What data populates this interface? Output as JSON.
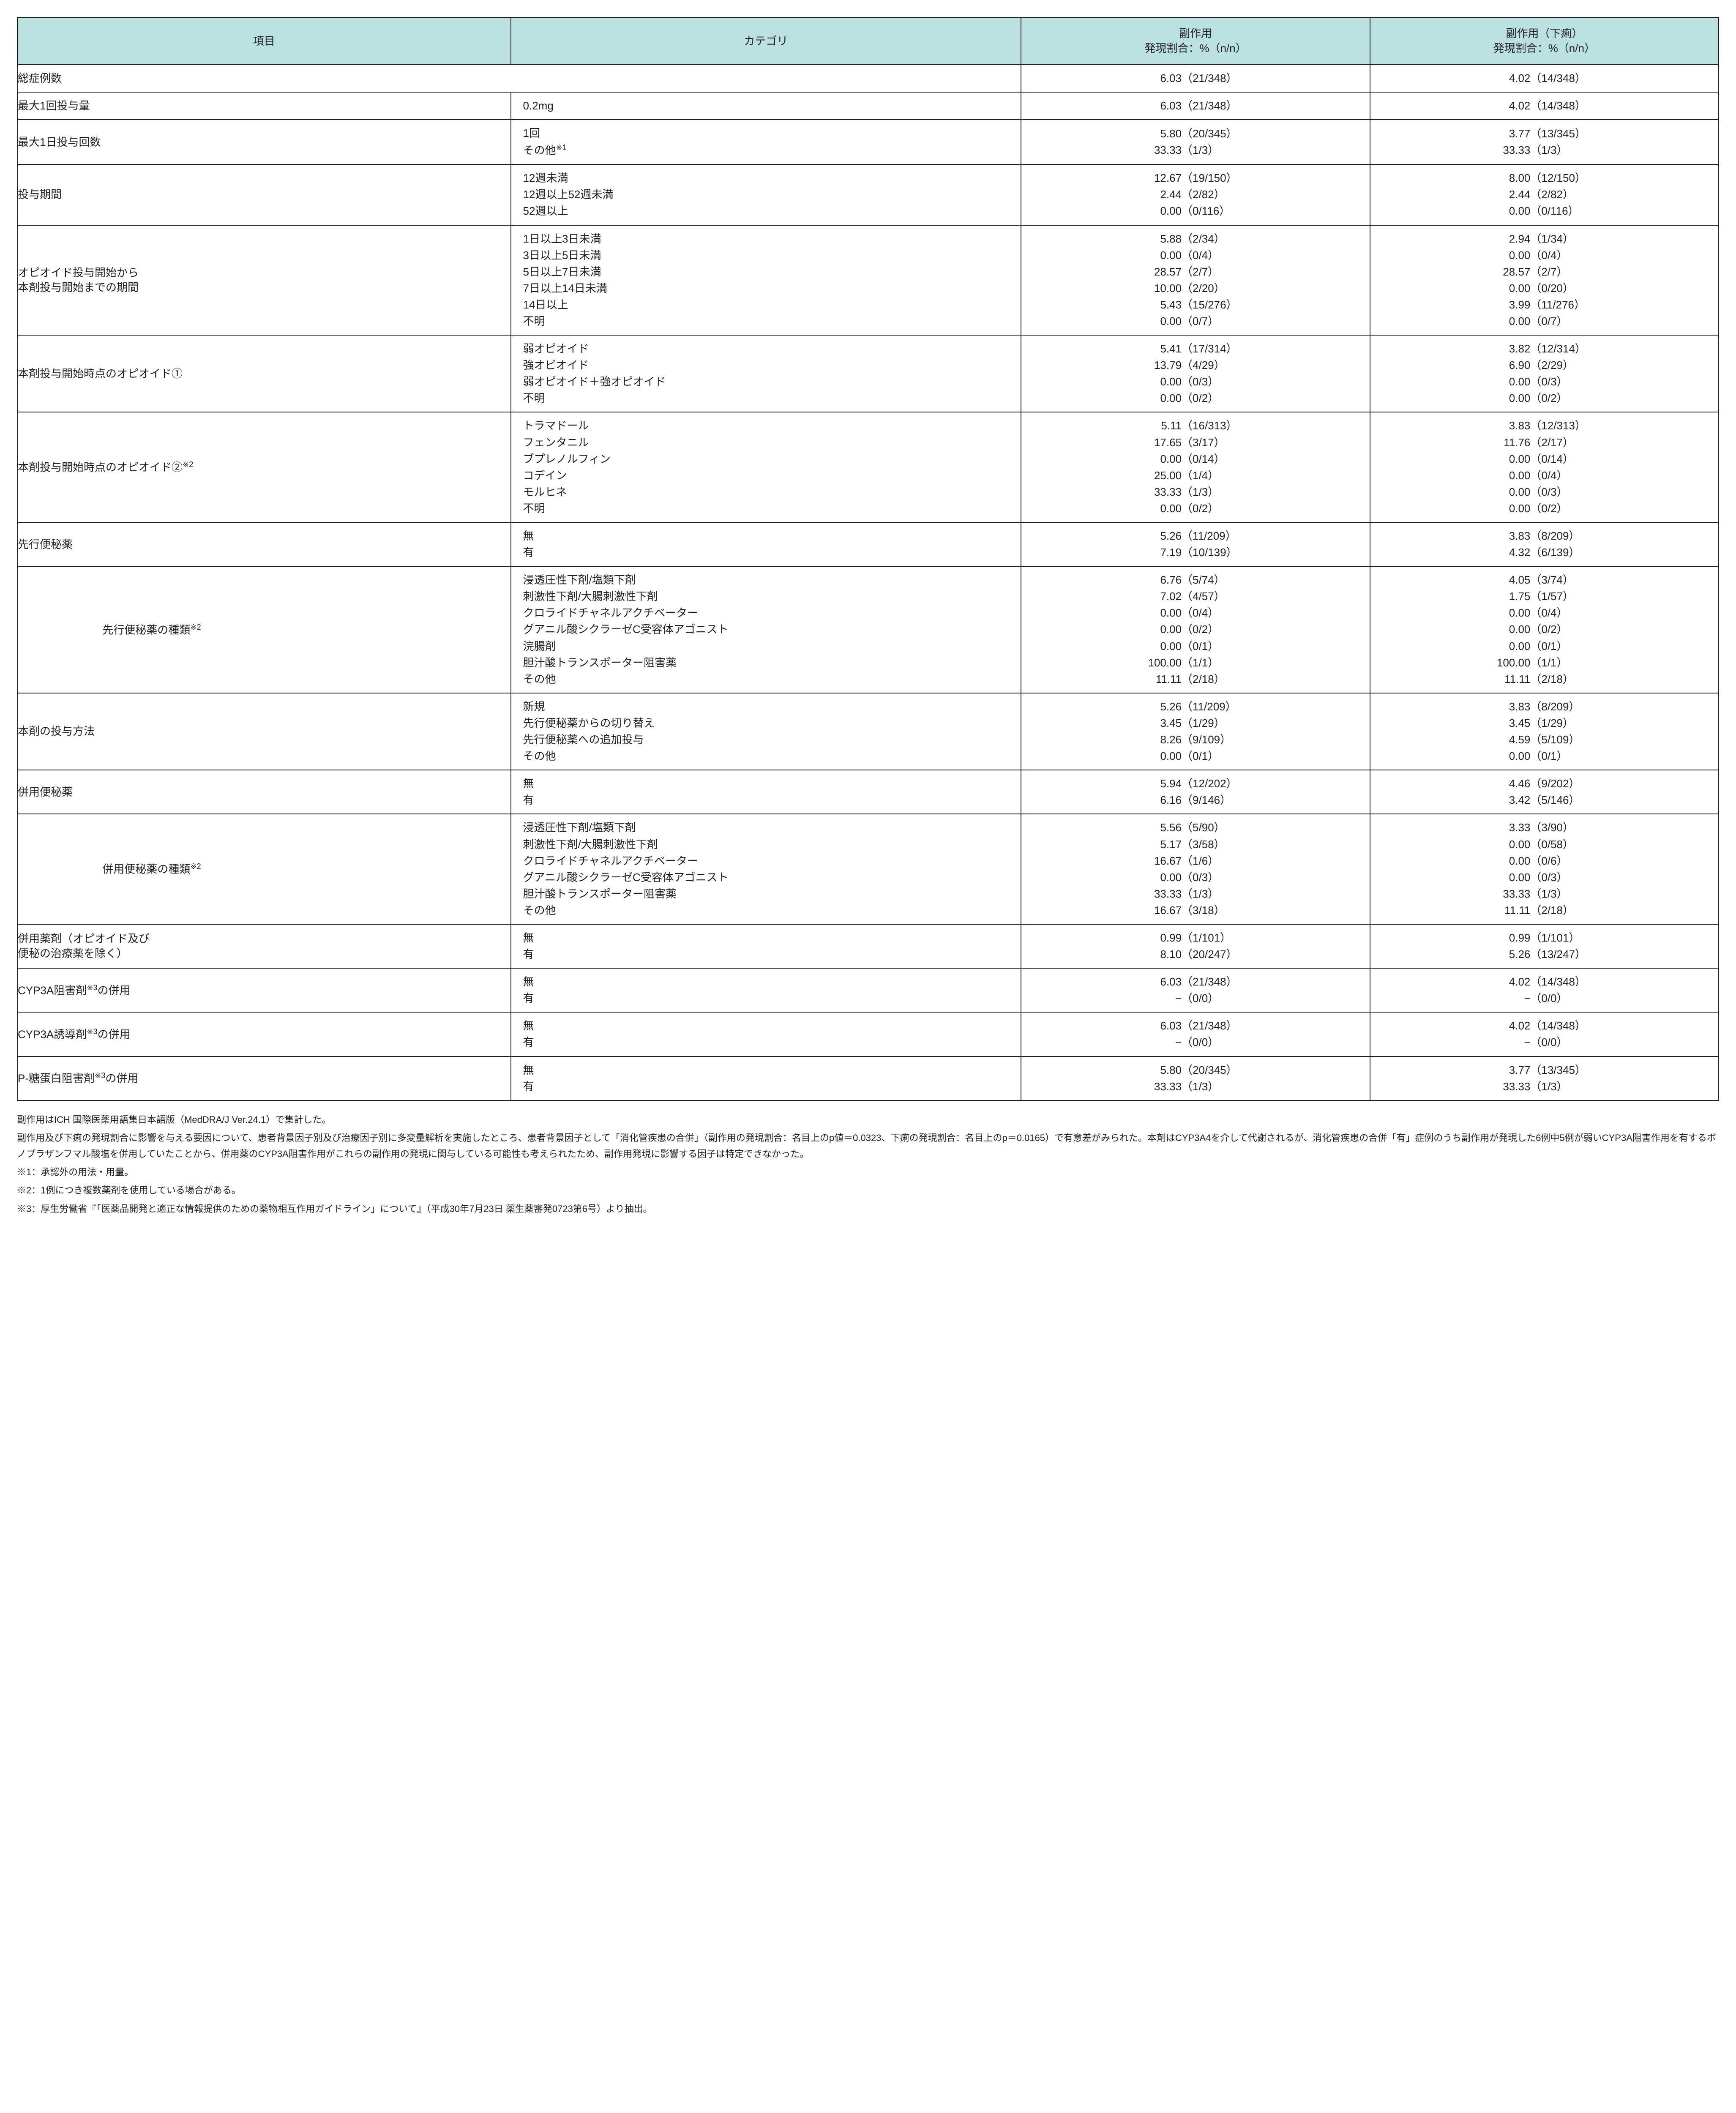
{
  "colors": {
    "header_bg": "#bae0e2",
    "border": "#231f20",
    "text": "#231f20",
    "bg": "#ffffff"
  },
  "header": {
    "item": "項目",
    "category": "カテゴリ",
    "ae": "副作用\n発現割合：%（n/n）",
    "diar": "副作用（下痢）\n発現割合：%（n/n）"
  },
  "widths": {
    "indent": "5%",
    "item": "24%",
    "cat": "30%",
    "ae": "20.5%",
    "diar": "20.5%"
  },
  "rows": [
    {
      "item": "総症例数",
      "span_cat": true,
      "cats": [
        ""
      ],
      "ae": [
        [
          "6.03",
          "（21/348）"
        ]
      ],
      "diar": [
        [
          "4.02",
          "（14/348）"
        ]
      ]
    },
    {
      "item": "最大1回投与量",
      "cats": [
        "0.2mg"
      ],
      "ae": [
        [
          "6.03",
          "（21/348）"
        ]
      ],
      "diar": [
        [
          "4.02",
          "（14/348）"
        ]
      ]
    },
    {
      "item": "最大1日投与回数",
      "cats": [
        "1回",
        "その他※1"
      ],
      "ae": [
        [
          "5.80",
          "（20/345）"
        ],
        [
          "33.33",
          "（1/3）"
        ]
      ],
      "diar": [
        [
          "3.77",
          "（13/345）"
        ],
        [
          "33.33",
          "（1/3）"
        ]
      ]
    },
    {
      "item": "投与期間",
      "cats": [
        "12週未満",
        "12週以上52週未満",
        "52週以上"
      ],
      "ae": [
        [
          "12.67",
          "（19/150）"
        ],
        [
          "2.44",
          "（2/82）"
        ],
        [
          "0.00",
          "（0/116）"
        ]
      ],
      "diar": [
        [
          "8.00",
          "（12/150）"
        ],
        [
          "2.44",
          "（2/82）"
        ],
        [
          "0.00",
          "（0/116）"
        ]
      ]
    },
    {
      "item": "オピオイド投与開始から\n本剤投与開始までの期間",
      "cats": [
        "1日以上3日未満",
        "3日以上5日未満",
        "5日以上7日未満",
        "7日以上14日未満",
        "14日以上",
        "不明"
      ],
      "ae": [
        [
          "5.88",
          "（2/34）"
        ],
        [
          "0.00",
          "（0/4）"
        ],
        [
          "28.57",
          "（2/7）"
        ],
        [
          "10.00",
          "（2/20）"
        ],
        [
          "5.43",
          "（15/276）"
        ],
        [
          "0.00",
          "（0/7）"
        ]
      ],
      "diar": [
        [
          "2.94",
          "（1/34）"
        ],
        [
          "0.00",
          "（0/4）"
        ],
        [
          "28.57",
          "（2/7）"
        ],
        [
          "0.00",
          "（0/20）"
        ],
        [
          "3.99",
          "（11/276）"
        ],
        [
          "0.00",
          "（0/7）"
        ]
      ]
    },
    {
      "item": "本剤投与開始時点のオピオイド①",
      "cats": [
        "弱オピオイド",
        "強オピオイド",
        "弱オピオイド＋強オピオイド",
        "不明"
      ],
      "ae": [
        [
          "5.41",
          "（17/314）"
        ],
        [
          "13.79",
          "（4/29）"
        ],
        [
          "0.00",
          "（0/3）"
        ],
        [
          "0.00",
          "（0/2）"
        ]
      ],
      "diar": [
        [
          "3.82",
          "（12/314）"
        ],
        [
          "6.90",
          "（2/29）"
        ],
        [
          "0.00",
          "（0/3）"
        ],
        [
          "0.00",
          "（0/2）"
        ]
      ]
    },
    {
      "item": "本剤投与開始時点のオピオイド②※2",
      "cats": [
        "トラマドール",
        "フェンタニル",
        "ブプレノルフィン",
        "コデイン",
        "モルヒネ",
        "不明"
      ],
      "ae": [
        [
          "5.11",
          "（16/313）"
        ],
        [
          "17.65",
          "（3/17）"
        ],
        [
          "0.00",
          "（0/14）"
        ],
        [
          "25.00",
          "（1/4）"
        ],
        [
          "33.33",
          "（1/3）"
        ],
        [
          "0.00",
          "（0/2）"
        ]
      ],
      "diar": [
        [
          "3.83",
          "（12/313）"
        ],
        [
          "11.76",
          "（2/17）"
        ],
        [
          "0.00",
          "（0/14）"
        ],
        [
          "0.00",
          "（0/4）"
        ],
        [
          "0.00",
          "（0/3）"
        ],
        [
          "0.00",
          "（0/2）"
        ]
      ]
    },
    {
      "item": "先行便秘薬",
      "cats": [
        "無",
        "有"
      ],
      "ae": [
        [
          "5.26",
          "（11/209）"
        ],
        [
          "7.19",
          "（10/139）"
        ]
      ],
      "diar": [
        [
          "3.83",
          "（8/209）"
        ],
        [
          "4.32",
          "（6/139）"
        ]
      ]
    },
    {
      "indent": true,
      "item": "先行便秘薬の種類※2",
      "cats": [
        "浸透圧性下剤/塩類下剤",
        "刺激性下剤/大腸刺激性下剤",
        "クロライドチャネルアクチベーター",
        "グアニル酸シクラーゼC受容体アゴニスト",
        "浣腸剤",
        "胆汁酸トランスポーター阻害薬",
        "その他"
      ],
      "ae": [
        [
          "6.76",
          "（5/74）"
        ],
        [
          "7.02",
          "（4/57）"
        ],
        [
          "0.00",
          "（0/4）"
        ],
        [
          "0.00",
          "（0/2）"
        ],
        [
          "0.00",
          "（0/1）"
        ],
        [
          "100.00",
          "（1/1）"
        ],
        [
          "11.11",
          "（2/18）"
        ]
      ],
      "diar": [
        [
          "4.05",
          "（3/74）"
        ],
        [
          "1.75",
          "（1/57）"
        ],
        [
          "0.00",
          "（0/4）"
        ],
        [
          "0.00",
          "（0/2）"
        ],
        [
          "0.00",
          "（0/1）"
        ],
        [
          "100.00",
          "（1/1）"
        ],
        [
          "11.11",
          "（2/18）"
        ]
      ]
    },
    {
      "item": "本剤の投与方法",
      "cats": [
        "新規",
        "先行便秘薬からの切り替え",
        "先行便秘薬への追加投与",
        "その他"
      ],
      "ae": [
        [
          "5.26",
          "（11/209）"
        ],
        [
          "3.45",
          "（1/29）"
        ],
        [
          "8.26",
          "（9/109）"
        ],
        [
          "0.00",
          "（0/1）"
        ]
      ],
      "diar": [
        [
          "3.83",
          "（8/209）"
        ],
        [
          "3.45",
          "（1/29）"
        ],
        [
          "4.59",
          "（5/109）"
        ],
        [
          "0.00",
          "（0/1）"
        ]
      ]
    },
    {
      "item": "併用便秘薬",
      "cats": [
        "無",
        "有"
      ],
      "ae": [
        [
          "5.94",
          "（12/202）"
        ],
        [
          "6.16",
          "（9/146）"
        ]
      ],
      "diar": [
        [
          "4.46",
          "（9/202）"
        ],
        [
          "3.42",
          "（5/146）"
        ]
      ]
    },
    {
      "indent": true,
      "item": "併用便秘薬の種類※2",
      "cats": [
        "浸透圧性下剤/塩類下剤",
        "刺激性下剤/大腸刺激性下剤",
        "クロライドチャネルアクチベーター",
        "グアニル酸シクラーゼC受容体アゴニスト",
        "胆汁酸トランスポーター阻害薬",
        "その他"
      ],
      "ae": [
        [
          "5.56",
          "（5/90）"
        ],
        [
          "5.17",
          "（3/58）"
        ],
        [
          "16.67",
          "（1/6）"
        ],
        [
          "0.00",
          "（0/3）"
        ],
        [
          "33.33",
          "（1/3）"
        ],
        [
          "16.67",
          "（3/18）"
        ]
      ],
      "diar": [
        [
          "3.33",
          "（3/90）"
        ],
        [
          "0.00",
          "（0/58）"
        ],
        [
          "0.00",
          "（0/6）"
        ],
        [
          "0.00",
          "（0/3）"
        ],
        [
          "33.33",
          "（1/3）"
        ],
        [
          "11.11",
          "（2/18）"
        ]
      ]
    },
    {
      "item": "併用薬剤（オピオイド及び\n便秘の治療薬を除く）",
      "cats": [
        "無",
        "有"
      ],
      "ae": [
        [
          "0.99",
          "（1/101）"
        ],
        [
          "8.10",
          "（20/247）"
        ]
      ],
      "diar": [
        [
          "0.99",
          "（1/101）"
        ],
        [
          "5.26",
          "（13/247）"
        ]
      ]
    },
    {
      "item": "CYP3A阻害剤※3の併用",
      "cats": [
        "無",
        "有"
      ],
      "ae": [
        [
          "6.03",
          "（21/348）"
        ],
        [
          "−",
          "（0/0）"
        ]
      ],
      "diar": [
        [
          "4.02",
          "（14/348）"
        ],
        [
          "−",
          "（0/0）"
        ]
      ]
    },
    {
      "item": "CYP3A誘導剤※3の併用",
      "cats": [
        "無",
        "有"
      ],
      "ae": [
        [
          "6.03",
          "（21/348）"
        ],
        [
          "−",
          "（0/0）"
        ]
      ],
      "diar": [
        [
          "4.02",
          "（14/348）"
        ],
        [
          "−",
          "（0/0）"
        ]
      ]
    },
    {
      "item": "P-糖蛋白阻害剤※3の併用",
      "cats": [
        "無",
        "有"
      ],
      "ae": [
        [
          "5.80",
          "（20/345）"
        ],
        [
          "33.33",
          "（1/3）"
        ]
      ],
      "diar": [
        [
          "3.77",
          "（13/345）"
        ],
        [
          "33.33",
          "（1/3）"
        ]
      ]
    }
  ],
  "footnotes": [
    "副作用はICH 国際医薬用語集日本語版（MedDRA/J Ver.24.1）で集計した。",
    "副作用及び下痢の発現割合に影響を与える要因について、患者背景因子別及び治療因子別に多変量解析を実施したところ、患者背景因子として「消化管疾患の合併」（副作用の発現割合：名目上のp値＝0.0323、下痢の発現割合：名目上のp＝0.0165）で有意差がみられた。本剤はCYP3A4を介して代謝されるが、消化管疾患の合併「有」症例のうち副作用が発現した6例中5例が弱いCYP3A阻害作用を有するボノプラザンフマル酸塩を併用していたことから、併用薬のCYP3A阻害作用がこれらの副作用の発現に関与している可能性も考えられたため、副作用発現に影響する因子は特定できなかった。",
    "※1：承認外の用法・用量。",
    "※2：1例につき複数薬剤を使用している場合がある。",
    "※3：厚生労働省『「医薬品開発と適正な情報提供のための薬物相互作用ガイドライン」について』（平成30年7月23日 薬生薬審発0723第6号）より抽出。"
  ]
}
